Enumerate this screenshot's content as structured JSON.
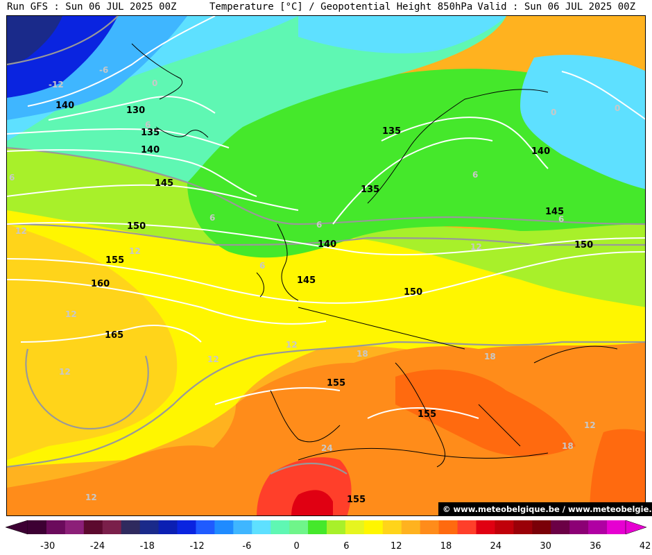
{
  "header": {
    "run": "Run GFS : Sun 06 JUL 2025 00Z",
    "title": "Temperature [°C] / Geopotential Height 850hPa",
    "valid": "Valid : Sun 06 JUL 2025 00Z"
  },
  "credit": "© www.meteobelgique.be / www.meteobelgie.be",
  "scale": {
    "colors": [
      "#3d0033",
      "#6b0b5c",
      "#8c1f78",
      "#5c0a2e",
      "#7a1f4a",
      "#2f2a5e",
      "#1a2a8a",
      "#0b1fb3",
      "#0a24e0",
      "#1f5bff",
      "#1f8bff",
      "#3fb6ff",
      "#5ee0ff",
      "#5ff7b3",
      "#6ff58a",
      "#45e82b",
      "#a8f02a",
      "#e6f51f",
      "#fff600",
      "#ffd41a",
      "#ffb21f",
      "#ff8c1a",
      "#ff6a0f",
      "#ff3f2a",
      "#e00012",
      "#c0000a",
      "#9a0008",
      "#7a0008",
      "#6b0045",
      "#8c0075",
      "#b000a3",
      "#e600d1"
    ],
    "ticks": [
      "-30",
      "-24",
      "-18",
      "-12",
      "-6",
      "0",
      "6",
      "12",
      "18",
      "24",
      "30",
      "36",
      "42"
    ]
  },
  "map": {
    "height_labels": [
      "140",
      "130",
      "135",
      "140",
      "145",
      "150",
      "155",
      "160",
      "165",
      "135",
      "135",
      "140",
      "145",
      "150",
      "145",
      "140",
      "150",
      "155",
      "155",
      "155"
    ],
    "temp_labels": [
      "-6",
      "-12",
      "0",
      "6",
      "6",
      "12",
      "12",
      "12",
      "12",
      "12",
      "12",
      "12",
      "6",
      "6",
      "6",
      "6",
      "6",
      "12",
      "18",
      "18",
      "18",
      "24",
      "12",
      "0",
      "0"
    ]
  }
}
